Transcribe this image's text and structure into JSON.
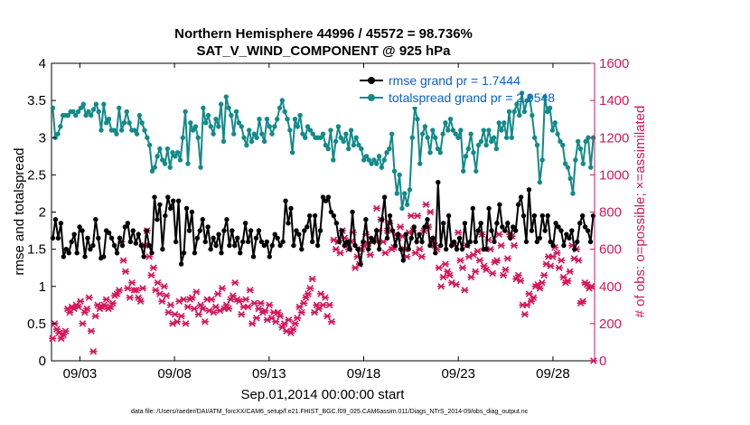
{
  "colors": {
    "rmse": "#000000",
    "spread": "#128a8a",
    "obs": "#d6165a",
    "legend_text": "#0b5fd6"
  },
  "chart_data": {
    "type": "line",
    "title_line1": "Northern Hemisphere 44996 / 45572 = 98.736%",
    "title_line2": "SAT_V_WIND_COMPONENT @ 925 hPa",
    "xlabel": "Sep.01,2014 00:00:00 start",
    "ylabel_left": "rmse and totalspread",
    "ylabel_right": "# of obs: o=possible; ×=assimilated",
    "footnote": "data file: /Users/raeder/DAI/ATM_forcXX/CAM6_setup/f.e21.FHIST_BGC.f09_025.CAM6assim.011/Diags_NTrS_2014-09/obs_diag_output.nc",
    "xlim": [
      1.5,
      30.2
    ],
    "ylim_left": [
      0,
      4
    ],
    "ylim_right": [
      0,
      1600
    ],
    "x_ticks": [
      3,
      8,
      13,
      18,
      23,
      28
    ],
    "x_tick_labels": [
      "09/03",
      "09/08",
      "09/13",
      "09/18",
      "09/23",
      "09/28"
    ],
    "y_ticks_left": [
      "0",
      "0.5",
      "1",
      "1.5",
      "2",
      "2.5",
      "3",
      "3.5",
      "4"
    ],
    "y_ticks_right": [
      "0",
      "200",
      "400",
      "600",
      "800",
      "1000",
      "1200",
      "1400",
      "1600"
    ],
    "legend": [
      {
        "label": "rmse grand pr = 1.7444",
        "series": "rmse"
      },
      {
        "label": "totalspread grand pr = 2.9548",
        "series": "spread"
      }
    ],
    "series": [
      {
        "name": "rmse",
        "values": [
          1.65,
          1.9,
          1.65,
          1.85,
          1.4,
          1.5,
          1.45,
          1.6,
          1.7,
          1.45,
          1.8,
          1.75,
          1.4,
          1.65,
          1.5,
          1.55,
          1.9,
          1.65,
          1.38,
          1.4,
          1.75,
          1.72,
          1.65,
          1.55,
          1.45,
          1.65,
          1.55,
          1.8,
          1.85,
          1.6,
          1.75,
          1.58,
          1.7,
          1.55,
          1.4,
          1.75,
          1.55,
          1.45,
          2.2,
          1.9,
          2.1,
          1.5,
          1.95,
          2.2,
          2.05,
          2.15,
          1.6,
          2.15,
          1.3,
          1.45,
          2.05,
          1.75,
          2.0,
          1.45,
          1.65,
          1.75,
          1.9,
          1.6,
          1.8,
          1.5,
          1.65,
          1.55,
          1.7,
          1.45,
          1.75,
          1.9,
          1.55,
          1.75,
          1.55,
          1.65,
          1.45,
          1.6,
          1.85,
          1.6,
          1.75,
          1.4,
          1.65,
          1.75,
          1.6,
          1.55,
          1.6,
          1.4,
          1.55,
          1.7,
          1.65,
          1.55,
          1.6,
          2.15,
          1.85,
          2.05,
          1.55,
          1.75,
          1.7,
          1.5,
          1.75,
          1.8,
          1.95,
          1.6,
          1.95,
          1.55,
          1.75,
          2.2,
          2.15,
          2.2,
          2.0,
          1.95,
          1.85,
          1.6,
          1.75,
          1.55,
          1.6,
          1.5,
          2.0,
          1.55,
          1.5,
          1.3,
          1.6,
          1.9,
          1.5,
          1.65,
          1.6,
          1.75,
          1.5,
          1.9,
          2.2,
          1.65,
          1.95,
          1.75,
          1.55,
          1.7,
          1.5,
          1.35,
          1.7,
          1.5,
          1.65,
          1.8,
          1.6,
          1.7,
          1.6,
          1.8,
          1.9,
          1.55,
          1.65,
          1.45,
          2.4,
          1.55,
          1.85,
          1.5,
          1.95,
          1.55,
          1.6,
          1.5,
          1.65,
          1.5,
          1.85,
          1.55,
          1.6,
          2.05,
          1.6,
          1.75,
          1.85,
          1.5,
          1.5,
          2.05,
          1.75,
          1.6,
          1.85,
          2.1,
          1.8,
          1.75,
          1.85,
          1.65,
          1.8,
          1.75,
          2.1,
          2.2,
          1.95,
          1.6,
          2.3,
          1.75,
          1.95,
          1.6,
          1.65,
          1.95,
          1.75,
          1.95,
          1.6,
          1.55,
          1.85,
          1.8,
          1.75,
          1.55,
          1.7,
          1.65,
          1.75,
          1.5,
          1.6,
          1.85,
          1.95,
          1.8,
          1.75,
          1.6,
          1.95
        ]
      },
      {
        "name": "totalspread",
        "values": [
          3.4,
          3.0,
          3.05,
          3.15,
          3.3,
          3.3,
          3.3,
          3.35,
          3.35,
          3.3,
          3.35,
          3.4,
          3.45,
          3.3,
          3.35,
          3.3,
          3.38,
          3.45,
          3.35,
          3.1,
          3.45,
          3.2,
          3.25,
          3.1,
          3.1,
          3.05,
          3.4,
          3.1,
          3.2,
          3.35,
          3.2,
          3.1,
          3.1,
          3.05,
          3.3,
          3.2,
          3.1,
          3.0,
          2.9,
          2.55,
          2.6,
          2.75,
          2.85,
          2.7,
          2.65,
          2.85,
          2.6,
          2.8,
          2.75,
          2.8,
          2.7,
          3.0,
          3.35,
          2.65,
          3.2,
          3.1,
          3.15,
          3.0,
          2.6,
          3.4,
          3.2,
          3.3,
          3.15,
          3.05,
          3.25,
          3.15,
          3.45,
          2.95,
          3.55,
          3.4,
          3.3,
          3.05,
          3.35,
          3.2,
          3.15,
          3.0,
          2.9,
          3.1,
          2.95,
          3.05,
          3.0,
          3.25,
          3.05,
          2.95,
          3.25,
          3.15,
          3.05,
          3.15,
          3.25,
          3.4,
          3.5,
          3.35,
          3.25,
          3.1,
          2.8,
          3.25,
          3.15,
          3.3,
          3.05,
          3.0,
          3.15,
          3.1,
          3.05,
          3.0,
          3.0,
          3.0,
          3.05,
          2.9,
          2.85,
          3.1,
          2.7,
          2.95,
          3.15,
          3.0,
          2.95,
          3.05,
          2.85,
          3.1,
          2.9,
          3.0,
          2.9,
          2.85,
          2.7,
          2.75,
          2.7,
          2.65,
          2.7,
          2.65,
          2.75,
          2.6,
          2.7,
          2.8,
          2.85,
          3.05,
          2.55,
          2.25,
          2.5,
          2.05,
          2.25,
          2.1,
          2.3,
          3.0,
          3.4,
          3.25,
          2.65,
          3.05,
          3.15,
          3.0,
          2.8,
          3.1,
          3.0,
          2.85,
          2.8,
          3.05,
          3.2,
          3.1,
          3.25,
          3.1,
          3.05,
          3.0,
          3.1,
          2.55,
          2.75,
          2.85,
          3.05,
          2.8,
          2.55,
          2.9,
          2.95,
          3.1,
          2.9,
          3.1,
          2.95,
          3.0,
          2.85,
          3.2,
          3.1,
          3.2,
          3.0,
          3.35,
          3.0,
          3.35,
          3.45,
          3.3,
          3.6,
          3.35,
          3.5,
          3.55,
          3.3,
          3.0,
          2.9,
          2.4,
          2.7,
          3.55,
          3.35,
          3.4,
          3.1,
          3.2,
          3.05,
          2.95,
          2.9,
          2.65,
          2.6,
          2.45,
          2.25,
          2.7,
          2.95,
          2.85,
          2.65,
          2.95,
          3.0,
          2.6,
          3.0
        ]
      },
      {
        "name": "obs_assimilated",
        "values": [
          120,
          200,
          170,
          150,
          120,
          140,
          160,
          280,
          260,
          290,
          280,
          300,
          290,
          320,
          200,
          260,
          280,
          340,
          160,
          50,
          240,
          300,
          280,
          290,
          300,
          330,
          280,
          290,
          310,
          350,
          360,
          380,
          640,
          540,
          480,
          390,
          340,
          420,
          380,
          380,
          340,
          320,
          390,
          620,
          700,
          560,
          460,
          500,
          380,
          420,
          360,
          320,
          400,
          350,
          260,
          300,
          200,
          250,
          210,
          320,
          240,
          330,
          200,
          290,
          330,
          340,
          280,
          370,
          250,
          300,
          280,
          210,
          330,
          270,
          330,
          260,
          290,
          360,
          270,
          390,
          280,
          300,
          280,
          330,
          350,
          420,
          330,
          320,
          250,
          290,
          330,
          290,
          380,
          200,
          310,
          230,
          280,
          310,
          260,
          270,
          220,
          300,
          230,
          260,
          210,
          260,
          240,
          180,
          200,
          160,
          220,
          150,
          170,
          200,
          230,
          290,
          260,
          310,
          340,
          360,
          390,
          440,
          260,
          300,
          280,
          360,
          300,
          340,
          240,
          300,
          210,
          650,
          600,
          640,
          580,
          700,
          660,
          620,
          600,
          640,
          690,
          500,
          560,
          520,
          600,
          620,
          680,
          630,
          570,
          640,
          650,
          820,
          700,
          760,
          640,
          580,
          700,
          740,
          600,
          610,
          680,
          660,
          720,
          670,
          600,
          560,
          690,
          780,
          700,
          580,
          780,
          600,
          560,
          700,
          840,
          720,
          800,
          650,
          620,
          600,
          500,
          400,
          450,
          520,
          480,
          460,
          420,
          620,
          410,
          690,
          540,
          500,
          380,
          620,
          560,
          450,
          570,
          480,
          590,
          540,
          680,
          510,
          490,
          650,
          600,
          470,
          530,
          540,
          680,
          620,
          460,
          490,
          550,
          680,
          670,
          620,
          440,
          460,
          430,
          300,
          250,
          300,
          360,
          320,
          340,
          400,
          410,
          390,
          420,
          460,
          520,
          560,
          510,
          560,
          610,
          580,
          500,
          540,
          450,
          420,
          430,
          480,
          620,
          550,
          600,
          540,
          310,
          320,
          420,
          410,
          390,
          400,
          0
        ]
      }
    ]
  }
}
